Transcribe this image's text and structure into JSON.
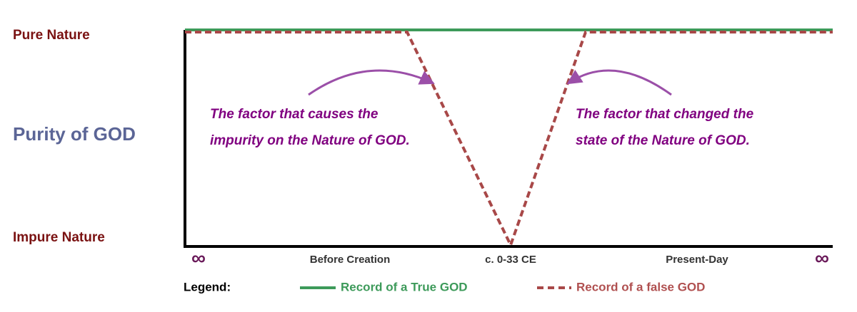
{
  "y_axis": {
    "title": "Purity of GOD",
    "top_label": "Pure Nature",
    "bottom_label": "Impure Nature"
  },
  "x_axis": {
    "labels": [
      "∞",
      "Before Creation",
      "c. 0-33 CE",
      "Present-Day",
      "∞"
    ]
  },
  "annotations": [
    {
      "lines": [
        "The factor that causes the",
        "impurity on the Nature of GOD."
      ]
    },
    {
      "lines": [
        "The factor that changed the",
        "state of the Nature of GOD."
      ]
    }
  ],
  "legend": {
    "title": "Legend:",
    "items": [
      "Record of a True GOD",
      "Record of a false GOD"
    ]
  }
}
